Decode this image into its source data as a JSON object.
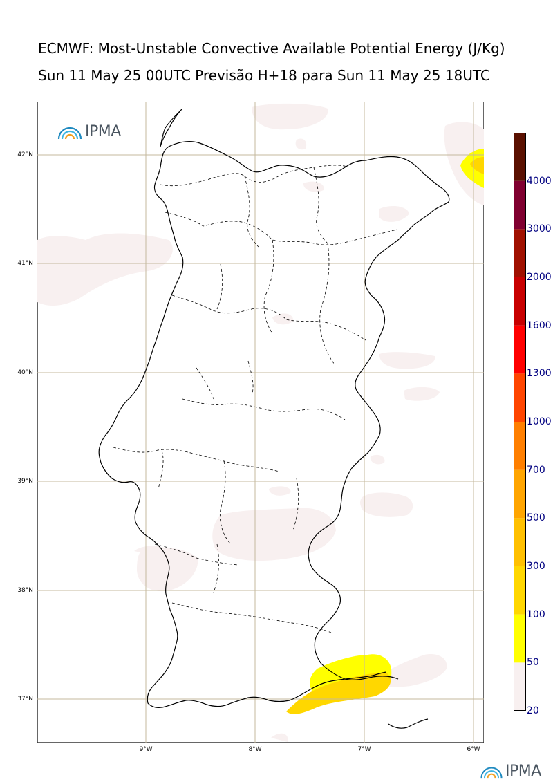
{
  "header": {
    "title": "ECMWF: Most-Unstable Convective Available Potential Energy (J/Kg)",
    "subtitle": "Sun 11 May 25 00UTC Previsão H+18 para Sun 11 May 25 18UTC"
  },
  "map": {
    "region": "Portugal",
    "latitude_labels": [
      "42°N",
      "41°N",
      "40°N",
      "39°N",
      "38°N",
      "37°N"
    ],
    "longitude_labels": [
      "9°W",
      "8°W",
      "7°W",
      "6°W"
    ],
    "grid": true
  },
  "logo": {
    "text": "IPMA"
  },
  "colorbar": {
    "levels": [
      "20",
      "50",
      "100",
      "300",
      "500",
      "700",
      "1000",
      "1300",
      "1600",
      "2000",
      "3000",
      "4000"
    ],
    "colors": [
      "#f8f0f0",
      "#ffff00",
      "#ffd700",
      "#ffc000",
      "#ffa500",
      "#ff7f00",
      "#ff4500",
      "#ff0000",
      "#c80000",
      "#a01000",
      "#800030",
      "#5a1000"
    ]
  },
  "colors": {
    "map_border": "#333333",
    "coastline": "#000000",
    "gridline": "#c4b89e",
    "low_cape": "#f8f0f0",
    "cape_50": "#ffff00",
    "cape_100": "#ffd700"
  }
}
